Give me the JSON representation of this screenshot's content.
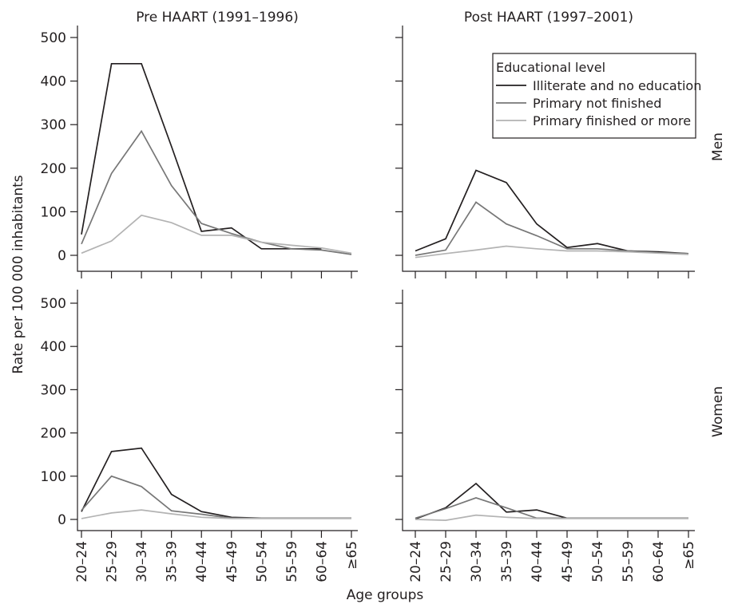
{
  "chart_data": {
    "type": "line",
    "xlabel": "Age groups",
    "ylabel": "Rate per 100 000 inhabitants",
    "ylim": [
      0,
      500
    ],
    "yticks": [
      "0",
      "100",
      "200",
      "300",
      "400",
      "500"
    ],
    "categories": [
      "20–24",
      "25–29",
      "30–34",
      "35–39",
      "40–44",
      "45–49",
      "50–54",
      "55–59",
      "60–64",
      "≥65"
    ],
    "column_titles": [
      "Pre HAART (1991–1996)",
      "Post HAART (1997–2001)"
    ],
    "row_titles": [
      "Men",
      "Women"
    ],
    "legend": {
      "title": "Educational level",
      "position": "top-right of Post HAART / Men panel",
      "entries": [
        "Illiterate and no education",
        "Primary not finished",
        "Primary finished or more"
      ]
    },
    "series_colors": [
      "#231f20",
      "#777777",
      "#b3b3b3"
    ],
    "grid": false,
    "panels": [
      {
        "period": "Pre HAART (1991–1996)",
        "sex": "Men",
        "series": [
          {
            "name": "Illiterate and no education",
            "values": [
              48,
              440,
              440,
              250,
              55,
              63,
              15,
              15,
              15,
              null
            ]
          },
          {
            "name": "Primary not finished",
            "values": [
              26,
              188,
              285,
              160,
              73,
              50,
              30,
              15,
              12,
              2
            ]
          },
          {
            "name": "Primary finished or more",
            "values": [
              5,
              33,
              92,
              75,
              46,
              46,
              30,
              23,
              17,
              5
            ]
          }
        ]
      },
      {
        "period": "Post HAART (1997–2001)",
        "sex": "Men",
        "series": [
          {
            "name": "Illiterate and no education",
            "values": [
              10,
              38,
              195,
              167,
              72,
              18,
              27,
              10,
              8,
              4
            ]
          },
          {
            "name": "Primary not finished",
            "values": [
              0,
              12,
              122,
              72,
              45,
              15,
              15,
              10,
              6,
              4
            ]
          },
          {
            "name": "Primary finished or more",
            "values": [
              -5,
              4,
              12,
              21,
              15,
              10,
              10,
              8,
              5,
              2
            ]
          }
        ]
      },
      {
        "period": "Pre HAART (1991–1996)",
        "sex": "Women",
        "series": [
          {
            "name": "Illiterate and no education",
            "values": [
              18,
              157,
              165,
              58,
              18,
              5,
              3,
              3,
              3,
              3
            ]
          },
          {
            "name": "Primary not finished",
            "values": [
              21,
              100,
              76,
              20,
              12,
              3,
              3,
              3,
              3,
              3
            ]
          },
          {
            "name": "Primary finished or more",
            "values": [
              2,
              15,
              22,
              13,
              5,
              2,
              2,
              2,
              2,
              2
            ]
          }
        ]
      },
      {
        "period": "Post HAART (1997–2001)",
        "sex": "Women",
        "series": [
          {
            "name": "Illiterate and no education",
            "values": [
              1,
              27,
              83,
              17,
              22,
              3,
              3,
              3,
              3,
              3
            ]
          },
          {
            "name": "Primary not finished",
            "values": [
              3,
              25,
              50,
              27,
              3,
              3,
              3,
              3,
              3,
              3
            ]
          },
          {
            "name": "Primary finished or more",
            "values": [
              0,
              -2,
              10,
              5,
              2,
              2,
              2,
              2,
              2,
              2
            ]
          }
        ]
      }
    ]
  }
}
